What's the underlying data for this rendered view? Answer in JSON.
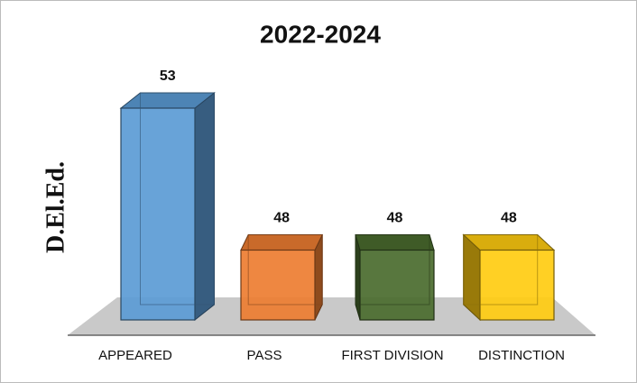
{
  "chart_data": {
    "type": "bar3d",
    "title": "2022-2024",
    "y_label": "D.El.Ed.",
    "categories": [
      "APPEARED",
      "PASS",
      "FIRST DIVISION",
      "DISTINCTION"
    ],
    "values": [
      53,
      48,
      48,
      48
    ],
    "colors": [
      "#5b9bd5",
      "#ed7d31",
      "#4a6b2e",
      "#ffcc11"
    ],
    "ylim": [
      45,
      55
    ]
  }
}
